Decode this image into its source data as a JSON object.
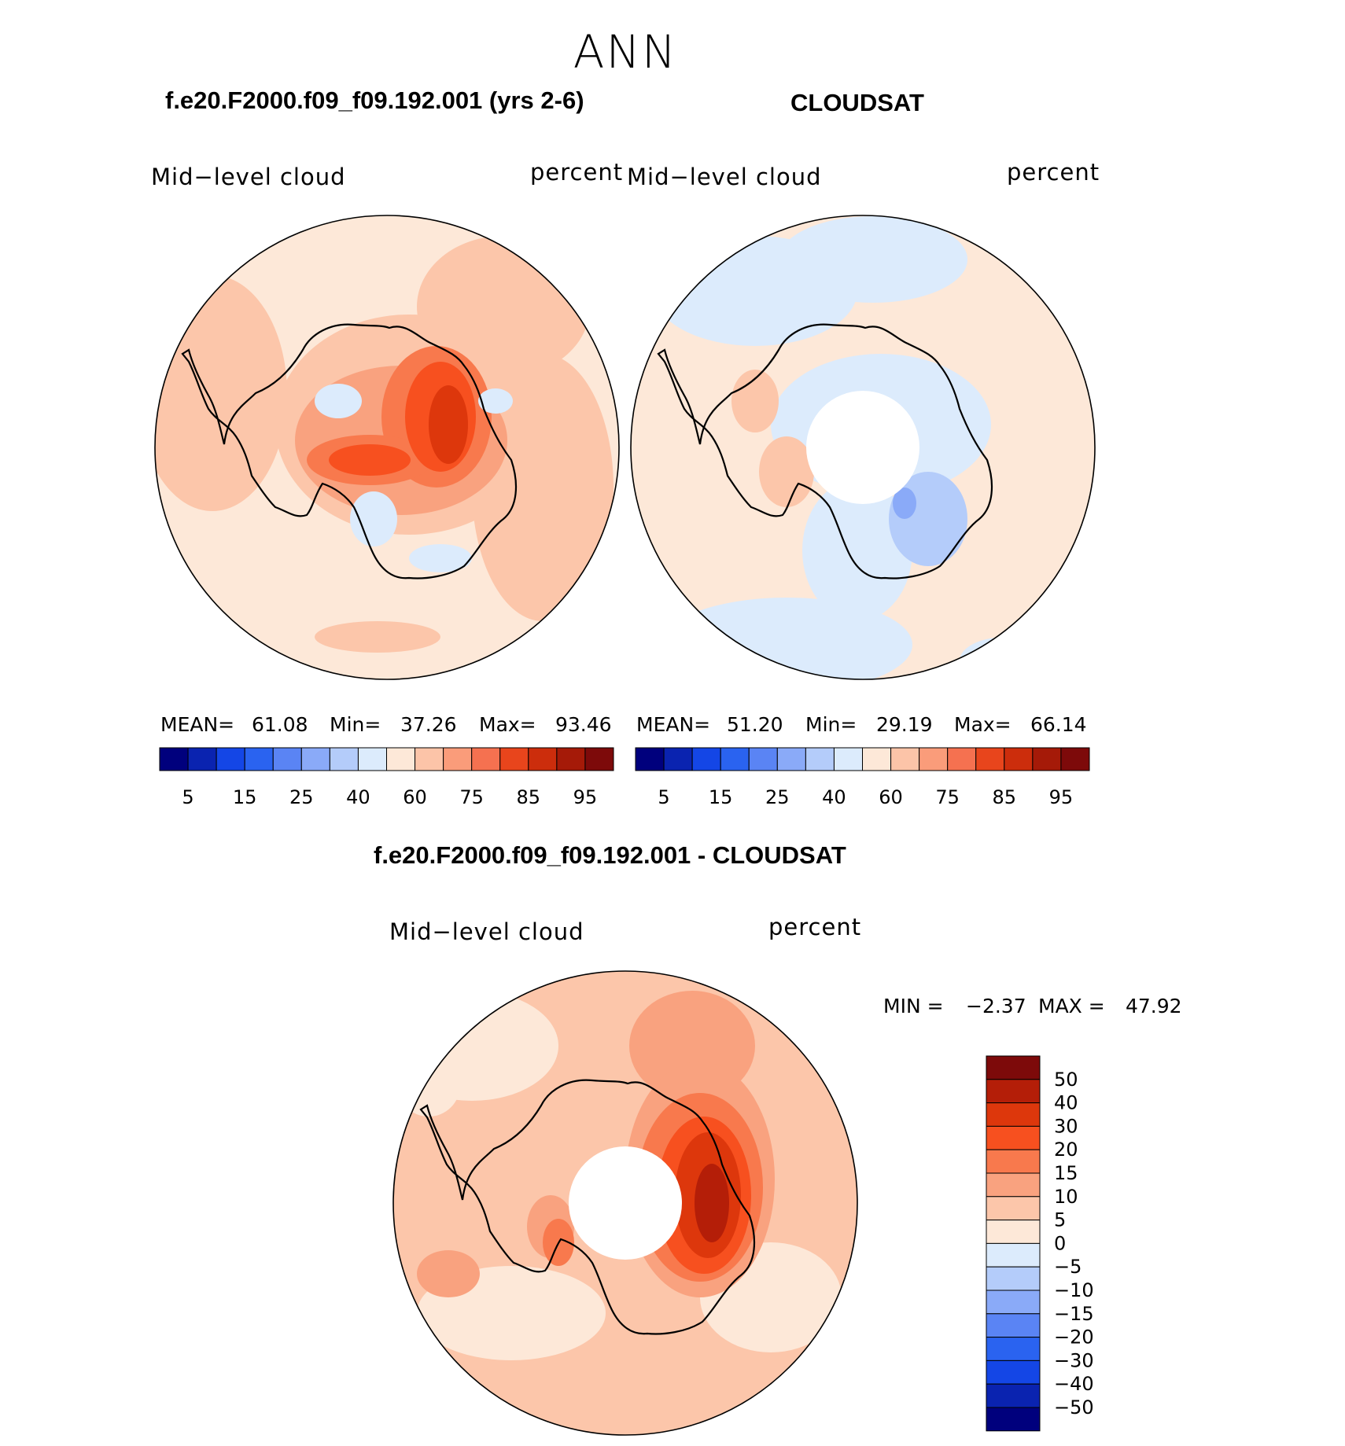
{
  "figure": {
    "season": "ANN"
  },
  "panels": [
    {
      "title": "f.e20.F2000.f09_f09.192.001 (yrs 2-6)",
      "left_label": "Mid−level cloud",
      "right_label": "percent",
      "stats": {
        "mean_label": "MEAN=",
        "mean": "61.08",
        "min_label": "Min=",
        "min": "37.26",
        "max_label": "Max=",
        "max": "93.46"
      }
    },
    {
      "title": "CLOUDSAT",
      "left_label": "Mid−level cloud",
      "right_label": "percent",
      "stats": {
        "mean_label": "MEAN=",
        "mean": "51.20",
        "min_label": "Min=",
        "min": "29.19",
        "max_label": "Max=",
        "max": "66.14"
      }
    },
    {
      "title": "f.e20.F2000.f09_f09.192.001 - CLOUDSAT",
      "left_label": "Mid−level cloud",
      "right_label": "percent",
      "stats": {
        "min_label": "MIN =",
        "min": "−2.37",
        "max_label": "MAX =",
        "max": "47.92"
      }
    }
  ],
  "abs_colorbar": {
    "colors": [
      "#00007d",
      "#0a23b0",
      "#1446e6",
      "#2a63f0",
      "#5a84f4",
      "#8aaaf8",
      "#b4ccfa",
      "#dcebfc",
      "#fde8d8",
      "#fcc4a8",
      "#fa9c7a",
      "#f57150",
      "#e8451c",
      "#cc2d0c",
      "#a51a08",
      "#7d0a0a"
    ],
    "tick_labels": [
      "5",
      "15",
      "25",
      "40",
      "60",
      "75",
      "85",
      "95"
    ]
  },
  "diff_colorbar": {
    "colors_top_to_bottom": [
      "#7d0a0a",
      "#b41e08",
      "#dd370c",
      "#f7501f",
      "#f8794d",
      "#f9a27f",
      "#fcc6aa",
      "#fde8d8",
      "#dcebfc",
      "#b4ccfa",
      "#8aaaf8",
      "#5a84f4",
      "#2a63f0",
      "#1446e6",
      "#0a23b0",
      "#00007d"
    ],
    "tick_labels": [
      "50",
      "40",
      "30",
      "20",
      "15",
      "10",
      "5",
      "0",
      "−5",
      "−10",
      "−15",
      "−20",
      "−30",
      "−40",
      "−50"
    ]
  }
}
